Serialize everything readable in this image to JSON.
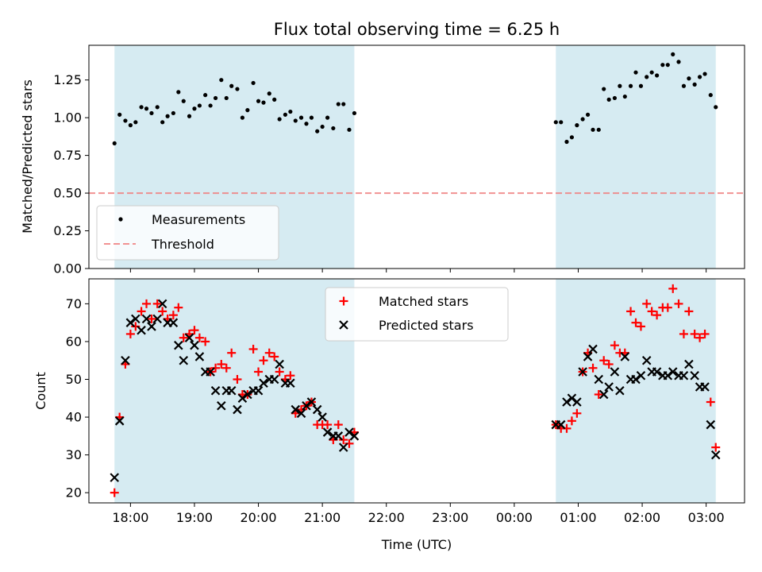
{
  "chart_data": [
    {
      "type": "scatter",
      "title": "Flux total observing time = 6.25 h",
      "xlabel": "",
      "ylabel": "Matched/Predicted stars",
      "xlim": [
        17.35,
        27.6
      ],
      "ylim": [
        0.0,
        1.48
      ],
      "yticks": [
        0.0,
        0.25,
        0.5,
        0.75,
        1.0,
        1.25
      ],
      "ytick_labels": [
        "0.00",
        "0.25",
        "0.50",
        "0.75",
        "1.00",
        "1.25"
      ],
      "shaded_intervals": [
        [
          17.75,
          21.5
        ],
        [
          24.65,
          27.15
        ]
      ],
      "shade_color": "#add8e6",
      "threshold": {
        "name": "Threshold",
        "value": 0.5,
        "color": "#f08080"
      },
      "legend": {
        "position": "lower-left",
        "entries": [
          "Measurements",
          "Threshold"
        ]
      },
      "series": [
        {
          "name": "Measurements",
          "color": "#000000",
          "marker": "dot",
          "x": [
            17.75,
            17.83,
            17.92,
            18.0,
            18.08,
            18.17,
            18.25,
            18.33,
            18.42,
            18.5,
            18.58,
            18.67,
            18.75,
            18.83,
            18.92,
            19.0,
            19.08,
            19.17,
            19.25,
            19.33,
            19.42,
            19.5,
            19.58,
            19.67,
            19.75,
            19.83,
            19.92,
            20.0,
            20.08,
            20.17,
            20.25,
            20.33,
            20.42,
            20.5,
            20.58,
            20.67,
            20.75,
            20.83,
            20.92,
            21.0,
            21.08,
            21.17,
            21.25,
            21.33,
            21.42,
            21.5,
            24.65,
            24.73,
            24.82,
            24.9,
            24.98,
            25.07,
            25.15,
            25.23,
            25.32,
            25.4,
            25.48,
            25.57,
            25.65,
            25.73,
            25.82,
            25.9,
            25.98,
            26.07,
            26.15,
            26.23,
            26.32,
            26.4,
            26.48,
            26.57,
            26.65,
            26.73,
            26.82,
            26.9,
            26.98,
            27.07,
            27.15
          ],
          "y": [
            0.83,
            1.02,
            0.98,
            0.95,
            0.97,
            1.07,
            1.06,
            1.03,
            1.07,
            0.97,
            1.01,
            1.03,
            1.17,
            1.11,
            1.01,
            1.06,
            1.08,
            1.15,
            1.08,
            1.13,
            1.25,
            1.13,
            1.21,
            1.19,
            1.0,
            1.05,
            1.23,
            1.11,
            1.1,
            1.16,
            1.12,
            0.99,
            1.02,
            1.04,
            0.98,
            1.0,
            0.96,
            1.0,
            0.91,
            0.94,
            1.0,
            0.93,
            1.09,
            1.09,
            0.92,
            1.03,
            0.97,
            0.97,
            0.84,
            0.87,
            0.95,
            0.99,
            1.02,
            0.92,
            0.92,
            1.19,
            1.12,
            1.13,
            1.21,
            1.14,
            1.21,
            1.3,
            1.21,
            1.27,
            1.3,
            1.28,
            1.35,
            1.35,
            1.42,
            1.37,
            1.21,
            1.26,
            1.22,
            1.27,
            1.29,
            1.15,
            1.07
          ]
        }
      ]
    },
    {
      "type": "scatter",
      "title": "",
      "xlabel": "Time (UTC)",
      "ylabel": "Count",
      "xlim": [
        17.35,
        27.6
      ],
      "ylim": [
        17.3,
        76.6
      ],
      "xticks": [
        18,
        19,
        20,
        21,
        22,
        23,
        24,
        25,
        26,
        27
      ],
      "xtick_labels": [
        "18:00",
        "19:00",
        "20:00",
        "21:00",
        "22:00",
        "23:00",
        "00:00",
        "01:00",
        "02:00",
        "03:00"
      ],
      "yticks": [
        20,
        30,
        40,
        50,
        60,
        70
      ],
      "ytick_labels": [
        "20",
        "30",
        "40",
        "50",
        "60",
        "70"
      ],
      "shaded_intervals": [
        [
          17.75,
          21.5
        ],
        [
          24.65,
          27.15
        ]
      ],
      "shade_color": "#add8e6",
      "legend": {
        "position": "upper-center",
        "entries": [
          "Matched stars",
          "Predicted stars"
        ]
      },
      "series": [
        {
          "name": "Matched stars",
          "color": "#ff0000",
          "marker": "plus",
          "x": [
            17.75,
            17.83,
            17.92,
            18.0,
            18.08,
            18.17,
            18.25,
            18.33,
            18.42,
            18.5,
            18.58,
            18.67,
            18.75,
            18.83,
            18.92,
            19.0,
            19.08,
            19.17,
            19.25,
            19.33,
            19.42,
            19.5,
            19.58,
            19.67,
            19.75,
            19.83,
            19.92,
            20.0,
            20.08,
            20.17,
            20.25,
            20.33,
            20.42,
            20.5,
            20.58,
            20.67,
            20.75,
            20.83,
            20.92,
            21.0,
            21.08,
            21.17,
            21.25,
            21.33,
            21.42,
            21.5,
            24.65,
            24.73,
            24.82,
            24.9,
            24.98,
            25.07,
            25.15,
            25.23,
            25.32,
            25.4,
            25.48,
            25.57,
            25.65,
            25.73,
            25.82,
            25.9,
            25.98,
            26.07,
            26.15,
            26.23,
            26.32,
            26.4,
            26.48,
            26.57,
            26.65,
            26.73,
            26.82,
            26.9,
            26.98,
            27.07,
            27.15
          ],
          "y": [
            20,
            40,
            54,
            62,
            64,
            68,
            70,
            66,
            70,
            68,
            66,
            67,
            69,
            61,
            62,
            63,
            61,
            60,
            52,
            53,
            54,
            53,
            57,
            50,
            46,
            46,
            58,
            52,
            55,
            57,
            56,
            52,
            50,
            51,
            41,
            42,
            43,
            44,
            38,
            38,
            38,
            34,
            38,
            34,
            33,
            36,
            38,
            37,
            37,
            39,
            41,
            52,
            57,
            53,
            46,
            55,
            54,
            59,
            57,
            57,
            68,
            65,
            64,
            70,
            68,
            67,
            69,
            69,
            74,
            70,
            62,
            68,
            62,
            61,
            62,
            44,
            32
          ]
        },
        {
          "name": "Predicted stars",
          "color": "#000000",
          "marker": "x",
          "x": [
            17.75,
            17.83,
            17.92,
            18.0,
            18.08,
            18.17,
            18.25,
            18.33,
            18.42,
            18.5,
            18.58,
            18.67,
            18.75,
            18.83,
            18.92,
            19.0,
            19.08,
            19.17,
            19.25,
            19.33,
            19.42,
            19.5,
            19.58,
            19.67,
            19.75,
            19.83,
            19.92,
            20.0,
            20.08,
            20.17,
            20.25,
            20.33,
            20.42,
            20.5,
            20.58,
            20.67,
            20.75,
            20.83,
            20.92,
            21.0,
            21.08,
            21.17,
            21.25,
            21.33,
            21.42,
            21.5,
            24.65,
            24.73,
            24.82,
            24.9,
            24.98,
            25.07,
            25.15,
            25.23,
            25.32,
            25.4,
            25.48,
            25.57,
            25.65,
            25.73,
            25.82,
            25.9,
            25.98,
            26.07,
            26.15,
            26.23,
            26.32,
            26.4,
            26.48,
            26.57,
            26.65,
            26.73,
            26.82,
            26.9,
            26.98,
            27.07,
            27.15
          ],
          "y": [
            24,
            39,
            55,
            65,
            66,
            63,
            66,
            64,
            66,
            70,
            65,
            65,
            59,
            55,
            61,
            59,
            56,
            52,
            52,
            47,
            43,
            47,
            47,
            42,
            45,
            46,
            47,
            47,
            49,
            50,
            50,
            54,
            49,
            49,
            42,
            41,
            43,
            44,
            42,
            40,
            36,
            35,
            35,
            32,
            36,
            35,
            38,
            38,
            44,
            45,
            44,
            52,
            56,
            58,
            50,
            46,
            48,
            52,
            47,
            56,
            50,
            50,
            51,
            55,
            52,
            52,
            51,
            51,
            52,
            51,
            51,
            54,
            51,
            48,
            48,
            38,
            30
          ]
        }
      ]
    }
  ]
}
